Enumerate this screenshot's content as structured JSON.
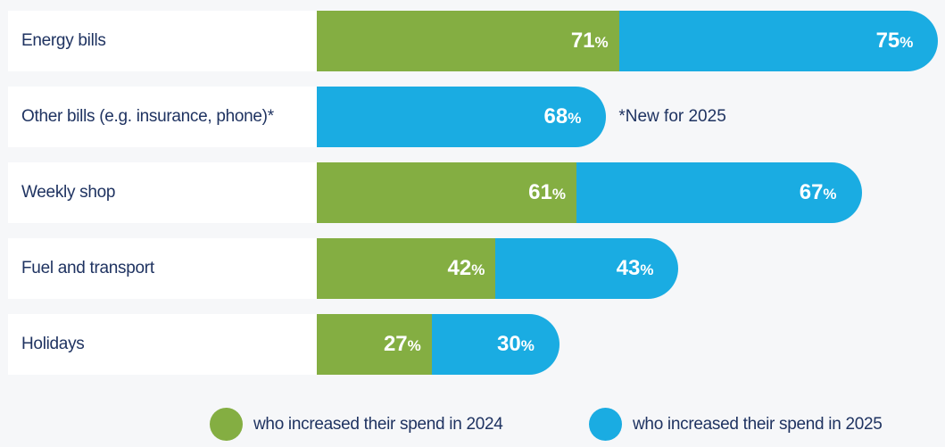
{
  "chart_data": {
    "type": "bar",
    "orientation": "horizontal",
    "stacked": true,
    "categories": [
      "Energy bills",
      "Other bills (e.g. insurance, phone)*",
      "Weekly shop",
      "Fuel and transport",
      "Holidays"
    ],
    "series": [
      {
        "name": "who increased their spend in 2024",
        "color": "#84ae42",
        "values": [
          71,
          null,
          61,
          42,
          27
        ]
      },
      {
        "name": "who increased their spend in 2025",
        "color": "#1aace2",
        "values": [
          75,
          68,
          67,
          43,
          30
        ]
      }
    ],
    "value_suffix": "%",
    "annotation": "*New for 2025",
    "legend_position": "bottom-right",
    "title": "",
    "xlabel": "",
    "ylabel": "",
    "grid": false
  }
}
